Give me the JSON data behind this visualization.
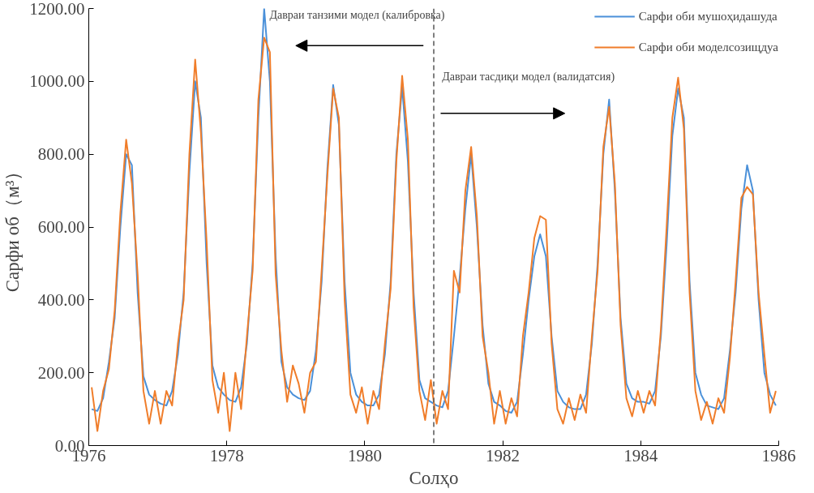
{
  "chart_data": {
    "type": "line",
    "xlabel": "Солҳо",
    "ylabel": "Сарфи об（м³）",
    "x": [
      1976.042,
      1976.125,
      1976.208,
      1976.292,
      1976.375,
      1976.458,
      1976.542,
      1976.625,
      1976.708,
      1976.792,
      1976.875,
      1976.958,
      1977.042,
      1977.125,
      1977.208,
      1977.292,
      1977.375,
      1977.458,
      1977.542,
      1977.625,
      1977.708,
      1977.792,
      1977.875,
      1977.958,
      1978.042,
      1978.125,
      1978.208,
      1978.292,
      1978.375,
      1978.458,
      1978.542,
      1978.625,
      1978.708,
      1978.792,
      1978.875,
      1978.958,
      1979.042,
      1979.125,
      1979.208,
      1979.292,
      1979.375,
      1979.458,
      1979.542,
      1979.625,
      1979.708,
      1979.792,
      1979.875,
      1979.958,
      1980.042,
      1980.125,
      1980.208,
      1980.292,
      1980.375,
      1980.458,
      1980.542,
      1980.625,
      1980.708,
      1980.792,
      1980.875,
      1980.958,
      1981.042,
      1981.125,
      1981.208,
      1981.292,
      1981.375,
      1981.458,
      1981.542,
      1981.625,
      1981.708,
      1981.792,
      1981.875,
      1981.958,
      1982.042,
      1982.125,
      1982.208,
      1982.292,
      1982.375,
      1982.458,
      1982.542,
      1982.625,
      1982.708,
      1982.792,
      1982.875,
      1982.958,
      1983.042,
      1983.125,
      1983.208,
      1983.292,
      1983.375,
      1983.458,
      1983.542,
      1983.625,
      1983.708,
      1983.792,
      1983.875,
      1983.958,
      1984.042,
      1984.125,
      1984.208,
      1984.292,
      1984.375,
      1984.458,
      1984.542,
      1984.625,
      1984.708,
      1984.792,
      1984.875,
      1984.958,
      1985.042,
      1985.125,
      1985.208,
      1985.292,
      1985.375,
      1985.458,
      1985.542,
      1985.625,
      1985.708,
      1985.792,
      1985.875,
      1985.958
    ],
    "series": [
      {
        "name": "Сарфи оби мушоҳидашуда",
        "color": "#4a90d9",
        "values": [
          100,
          95,
          130,
          230,
          350,
          600,
          800,
          770,
          420,
          190,
          140,
          125,
          115,
          110,
          150,
          250,
          420,
          750,
          1000,
          900,
          500,
          220,
          160,
          140,
          125,
          120,
          160,
          280,
          500,
          900,
          1200,
          1000,
          520,
          230,
          160,
          140,
          130,
          125,
          150,
          260,
          450,
          760,
          990,
          880,
          450,
          200,
          140,
          120,
          110,
          110,
          140,
          250,
          450,
          800,
          985,
          780,
          420,
          180,
          130,
          120,
          110,
          105,
          150,
          300,
          460,
          650,
          800,
          600,
          330,
          170,
          120,
          110,
          95,
          90,
          120,
          250,
          400,
          520,
          580,
          520,
          300,
          150,
          120,
          105,
          100,
          100,
          140,
          280,
          500,
          800,
          950,
          700,
          350,
          170,
          130,
          120,
          120,
          115,
          150,
          300,
          550,
          850,
          980,
          900,
          450,
          200,
          140,
          110,
          105,
          100,
          130,
          260,
          420,
          650,
          770,
          700,
          400,
          200,
          140,
          110
        ]
      },
      {
        "name": "Сарфи оби моделсозищдуа",
        "color": "#f07d2a",
        "values": [
          160,
          40,
          150,
          210,
          370,
          640,
          840,
          720,
          470,
          150,
          60,
          150,
          60,
          150,
          110,
          280,
          400,
          800,
          1060,
          860,
          560,
          180,
          90,
          200,
          40,
          200,
          100,
          300,
          480,
          950,
          1120,
          1080,
          470,
          260,
          120,
          220,
          170,
          90,
          200,
          230,
          480,
          740,
          980,
          900,
          400,
          140,
          90,
          160,
          60,
          150,
          100,
          280,
          430,
          780,
          1015,
          840,
          380,
          150,
          70,
          180,
          60,
          150,
          100,
          480,
          420,
          700,
          820,
          630,
          300,
          200,
          60,
          150,
          60,
          130,
          80,
          300,
          420,
          570,
          630,
          620,
          280,
          100,
          60,
          130,
          70,
          140,
          90,
          300,
          480,
          820,
          930,
          720,
          330,
          130,
          80,
          150,
          90,
          150,
          110,
          320,
          600,
          900,
          1010,
          870,
          420,
          150,
          70,
          120,
          60,
          130,
          90,
          240,
          450,
          680,
          710,
          690,
          420,
          250,
          90,
          150
        ]
      }
    ],
    "xlim": [
      1976,
      1986
    ],
    "xticks": [
      1976,
      1978,
      1980,
      1982,
      1984,
      1986
    ],
    "ylim": [
      0,
      1200
    ],
    "yticks": [
      {
        "value": 0,
        "label": "0.00"
      },
      {
        "value": 200,
        "label": "200.00"
      },
      {
        "value": 400,
        "label": "400.00"
      },
      {
        "value": 600,
        "label": "600.00"
      },
      {
        "value": 800,
        "label": "800.00"
      },
      {
        "value": 1000,
        "label": "1000.00"
      },
      {
        "value": 1200,
        "label": "1200.00"
      }
    ],
    "ref_lines": [
      {
        "axis": "x",
        "value": 1981,
        "label": null,
        "color": "#555555",
        "line_style": "dashed"
      }
    ],
    "annotations": [
      "Давраи танзими модел (калибровка)",
      "Давраи тасдиқи модел (валидатсия)"
    ],
    "grid": false,
    "legend": "top right",
    "line_style": "solid",
    "marker": "none"
  }
}
